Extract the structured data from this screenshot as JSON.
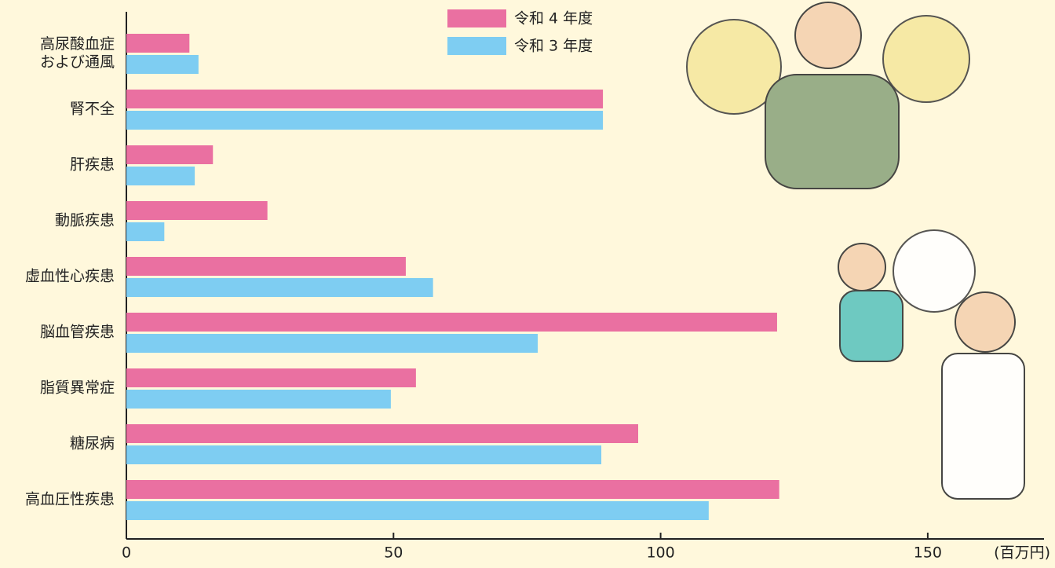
{
  "chart_data": {
    "type": "bar",
    "orientation": "horizontal",
    "categories": [
      "高尿酸血症\nおよび通風",
      "腎不全",
      "肝疾患",
      "動脈疾患",
      "虚血性心疾患",
      "脳血管疾患",
      "脂質異常症",
      "糖尿病",
      "高血圧性疾患"
    ],
    "series": [
      {
        "name": "令和 4 年度",
        "color": "#ea70a1",
        "values": [
          11.8,
          89.2,
          16.2,
          26.4,
          52.3,
          121.8,
          54.2,
          95.8,
          122.2
        ]
      },
      {
        "name": "令和 3 年度",
        "color": "#7ecdf2",
        "values": [
          13.5,
          89.2,
          12.8,
          7.1,
          57.4,
          77.0,
          49.5,
          88.9,
          109.0
        ]
      }
    ],
    "xlim": [
      0,
      170
    ],
    "xticks": [
      0,
      50,
      100,
      150
    ],
    "x_unit_label": "(百万円)",
    "grid": false
  }
}
